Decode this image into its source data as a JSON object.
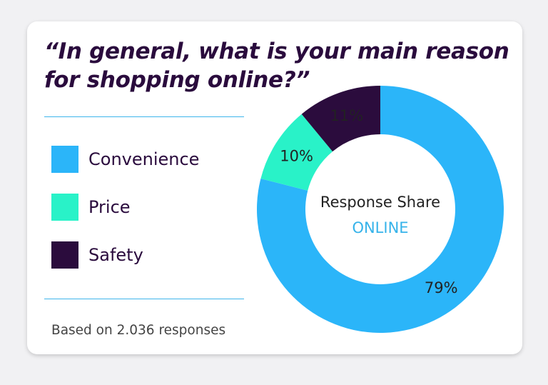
{
  "title": "“In general, what is your main reason for shopping online?”",
  "footnote": "Based on 2.036 responses",
  "center": {
    "title": "Response Share",
    "subtitle": "ONLINE"
  },
  "colors": {
    "convenience": "#2bb5f9",
    "price": "#29f2c8",
    "safety": "#2b0c3d",
    "rule": "#3fb6ec"
  },
  "chart_data": {
    "type": "pie",
    "categories": [
      "Convenience",
      "Price",
      "Safety"
    ],
    "values": [
      79,
      10,
      11
    ],
    "labels": [
      "79%",
      "10%",
      "11%"
    ],
    "unit": "%",
    "legend": "left",
    "donut": true
  }
}
